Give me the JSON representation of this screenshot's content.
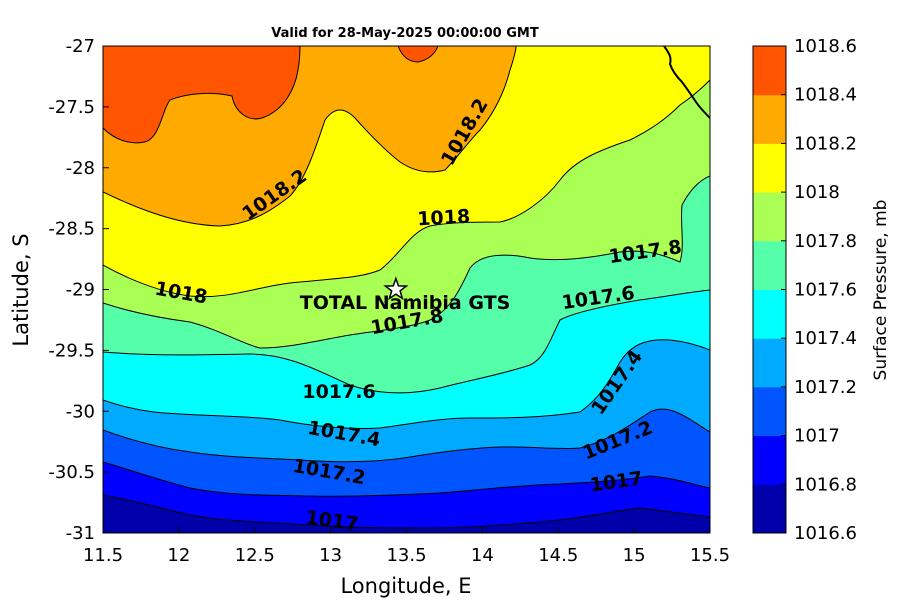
{
  "title": "Valid for 28-May-2025 00:00:00 GMT",
  "colors": {
    "band_1016_6": "#0000aa",
    "band_1016_8": "#0000ff",
    "band_1017_0": "#0055ff",
    "band_1017_2": "#00aaff",
    "band_1017_4": "#00ffff",
    "band_1017_6": "#55ffaa",
    "band_1017_8": "#aaff55",
    "band_1018_0": "#ffff00",
    "band_1018_2": "#ffaa00",
    "band_1018_4": "#ff5500",
    "band_1018_6": "#ff0000"
  },
  "chart_data": {
    "type": "contour",
    "title": "Valid for 28-May-2025 00:00:00 GMT",
    "xlabel": "Longitude, E",
    "ylabel": "Latitude, S",
    "xlim": [
      11.5,
      15.5
    ],
    "ylim": [
      -31,
      -27
    ],
    "xticks": [
      "11.5",
      "12",
      "12.5",
      "13",
      "13.5",
      "14",
      "14.5",
      "15",
      "15.5"
    ],
    "yticks": [
      "-27",
      "-27.5",
      "-28",
      "-28.5",
      "-29",
      "-29.5",
      "-30",
      "-30.5",
      "-31"
    ],
    "colorbar": {
      "label": "Surface Pressure, mb",
      "ticks": [
        "1018.6",
        "1018.4",
        "1018.2",
        "1018",
        "1017.8",
        "1017.6",
        "1017.4",
        "1017.2",
        "1017",
        "1016.8",
        "1016.6"
      ]
    },
    "contour_labels": [
      "1018.2",
      "1018.2",
      "1018",
      "1018",
      "1017.8",
      "1017.8",
      "1017.6",
      "1017.6",
      "1017.4",
      "1017.4",
      "1017.2",
      "1017.2",
      "1017",
      "1017"
    ],
    "station": {
      "name": "TOTAL Namibia GTS",
      "lon": 13.43,
      "lat": -29.0
    }
  }
}
